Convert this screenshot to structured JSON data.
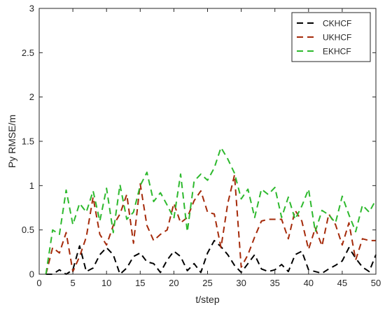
{
  "chart_data": {
    "type": "line",
    "xlabel": "t/step",
    "ylabel": "Py RMSE/m",
    "xlim": [
      0,
      50
    ],
    "ylim": [
      0,
      3
    ],
    "xticks": [
      0,
      5,
      10,
      15,
      20,
      25,
      30,
      35,
      40,
      45,
      50
    ],
    "yticks": [
      0,
      0.5,
      1,
      1.5,
      2,
      2.5,
      3
    ],
    "ytick_labels": [
      "0",
      "0.5",
      "1",
      "1.5",
      "2",
      "2.5",
      "3"
    ],
    "grid": false,
    "legend_position": "top-right",
    "x": [
      1,
      2,
      3,
      4,
      5,
      6,
      7,
      8,
      9,
      10,
      11,
      12,
      13,
      14,
      15,
      16,
      17,
      18,
      19,
      20,
      21,
      22,
      23,
      24,
      25,
      26,
      27,
      28,
      29,
      30,
      31,
      32,
      33,
      34,
      35,
      36,
      37,
      38,
      39,
      40,
      41,
      42,
      43,
      44,
      45,
      46,
      47,
      48,
      49,
      50
    ],
    "series": [
      {
        "name": "CKHCF",
        "color": "#000000",
        "values": [
          0,
          0,
          0.05,
          0,
          0.05,
          0.32,
          0.03,
          0.07,
          0.22,
          0.3,
          0.22,
          0,
          0.07,
          0.2,
          0.24,
          0.14,
          0.12,
          0.02,
          0.16,
          0.26,
          0.2,
          0.04,
          0.12,
          0.02,
          0.24,
          0.38,
          0.31,
          0.22,
          0.1,
          0.02,
          0.12,
          0.22,
          0.06,
          0.03,
          0.05,
          0.11,
          0.03,
          0.22,
          0.26,
          0.05,
          0.03,
          0.01,
          0.06,
          0.1,
          0.15,
          0.3,
          0.18,
          0.08,
          0.03,
          0.22
        ]
      },
      {
        "name": "UKHCF",
        "color": "#a52a0a",
        "values": [
          0,
          0.3,
          0.24,
          0.47,
          0.03,
          0.2,
          0.42,
          0.87,
          0.45,
          0.33,
          0.55,
          0.68,
          0.9,
          0.35,
          1.02,
          0.55,
          0.38,
          0.45,
          0.5,
          0.8,
          0.58,
          0.64,
          0.83,
          0.94,
          0.7,
          0.68,
          0.3,
          0.8,
          1.12,
          0.08,
          0.22,
          0.42,
          0.6,
          0.62,
          0.62,
          0.62,
          0.4,
          0.72,
          0.6,
          0.28,
          0.52,
          0.32,
          0.68,
          0.56,
          0.33,
          0.58,
          0.16,
          0.4,
          0.38,
          0.38
        ]
      },
      {
        "name": "EKHCF",
        "color": "#2db92d",
        "values": [
          0,
          0.5,
          0.45,
          0.95,
          0.56,
          0.8,
          0.7,
          0.94,
          0.6,
          0.97,
          0.47,
          1.01,
          0.62,
          0.7,
          1.0,
          1.15,
          0.82,
          0.92,
          0.78,
          0.63,
          1.13,
          0.48,
          1.05,
          1.13,
          1.06,
          1.2,
          1.43,
          1.3,
          1.14,
          0.85,
          0.96,
          0.64,
          0.96,
          0.9,
          0.98,
          0.64,
          0.87,
          0.62,
          0.77,
          0.96,
          0.48,
          0.72,
          0.67,
          0.58,
          0.88,
          0.67,
          0.48,
          0.78,
          0.7,
          0.84
        ]
      }
    ]
  }
}
